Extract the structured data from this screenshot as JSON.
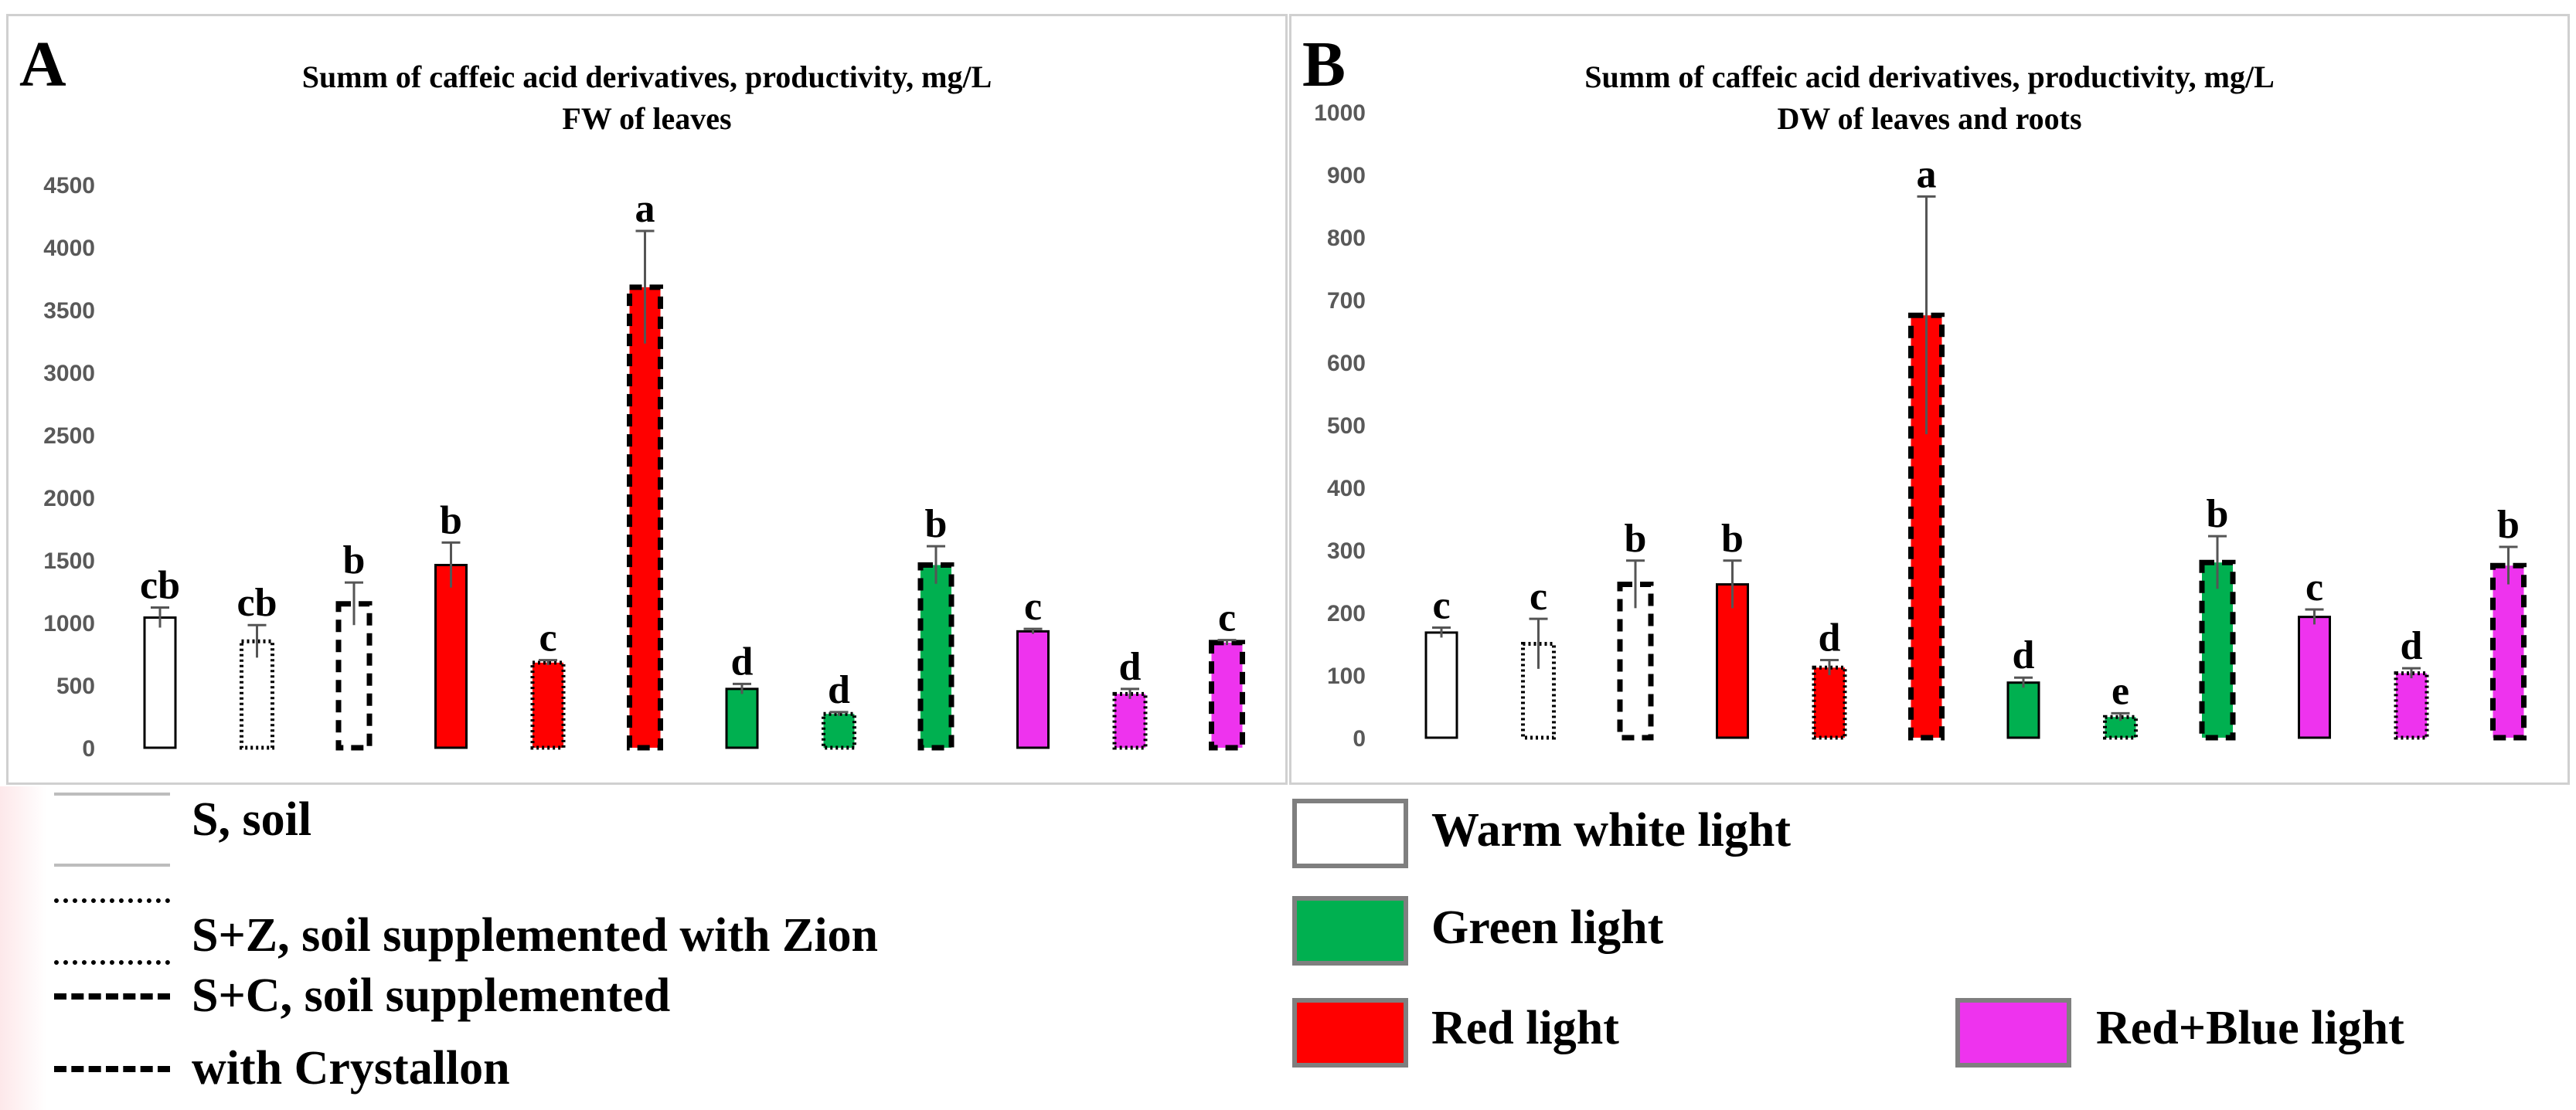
{
  "panels": [
    {
      "letter": "A",
      "title_line1": "Summ  of caffeic acid derivatives, productivity,  mg/L",
      "title_line2": "FW of leaves"
    },
    {
      "letter": "B",
      "title_line1": "Summ  of caffeic acid derivatives, productivity,  mg/L",
      "title_line2": "DW of leaves and roots"
    }
  ],
  "legend": {
    "substrates": {
      "soil": "S, soil",
      "zion": "S+Z, soil supplemented with Zion",
      "crystallon_1": "S+C, soil supplemented",
      "crystallon_2": "with Crystallon"
    },
    "lights": {
      "warm": "Warm white light",
      "green": "Green light",
      "red": "Red light",
      "redblue": "Red+Blue light"
    }
  },
  "colors": {
    "warm_white": "#ffffff",
    "green": "#00b050",
    "red": "#ff0000",
    "red_blue": "#ee33ee",
    "swatch_border": "#7f7f7f"
  },
  "chart_data": [
    {
      "type": "bar",
      "title": "Summ  of caffeic acid derivatives, productivity,  mg/L FW of leaves",
      "ylim": [
        0,
        4500
      ],
      "yticks": [
        "0",
        "500",
        "1000",
        "1500",
        "2000",
        "2500",
        "3000",
        "3500",
        "4000",
        "4500"
      ],
      "grid": false,
      "bars": [
        {
          "light": "warm",
          "substrate": "soil",
          "value": 1040,
          "error": 80,
          "letter": "cb"
        },
        {
          "light": "warm",
          "substrate": "zion",
          "value": 850,
          "error": 130,
          "letter": "cb"
        },
        {
          "light": "warm",
          "substrate": "crystallon",
          "value": 1150,
          "error": 170,
          "letter": "b"
        },
        {
          "light": "red",
          "substrate": "soil",
          "value": 1460,
          "error": 180,
          "letter": "b"
        },
        {
          "light": "red",
          "substrate": "zion",
          "value": 680,
          "error": 20,
          "letter": "c"
        },
        {
          "light": "red",
          "substrate": "crystallon",
          "value": 3680,
          "error": 450,
          "letter": "a"
        },
        {
          "light": "green",
          "substrate": "soil",
          "value": 470,
          "error": 40,
          "letter": "d"
        },
        {
          "light": "green",
          "substrate": "zion",
          "value": 270,
          "error": 15,
          "letter": "d"
        },
        {
          "light": "green",
          "substrate": "crystallon",
          "value": 1460,
          "error": 150,
          "letter": "b"
        },
        {
          "light": "redblue",
          "substrate": "soil",
          "value": 930,
          "error": 20,
          "letter": "c"
        },
        {
          "light": "redblue",
          "substrate": "zion",
          "value": 430,
          "error": 40,
          "letter": "d"
        },
        {
          "light": "redblue",
          "substrate": "crystallon",
          "value": 840,
          "error": 20,
          "letter": "c"
        }
      ]
    },
    {
      "type": "bar",
      "title": "Summ  of caffeic acid derivatives, productivity,  mg/L DW of leaves and roots",
      "ylim": [
        0,
        1000
      ],
      "yticks": [
        "0",
        "100",
        "200",
        "300",
        "400",
        "500",
        "600",
        "700",
        "800",
        "900",
        "1000"
      ],
      "grid": false,
      "bars": [
        {
          "light": "warm",
          "substrate": "soil",
          "value": 168,
          "error": 8,
          "letter": "c"
        },
        {
          "light": "warm",
          "substrate": "zion",
          "value": 150,
          "error": 40,
          "letter": "c"
        },
        {
          "light": "warm",
          "substrate": "crystallon",
          "value": 245,
          "error": 38,
          "letter": "b"
        },
        {
          "light": "red",
          "substrate": "soil",
          "value": 245,
          "error": 38,
          "letter": "b"
        },
        {
          "light": "red",
          "substrate": "zion",
          "value": 112,
          "error": 12,
          "letter": "d"
        },
        {
          "light": "red",
          "substrate": "crystallon",
          "value": 675,
          "error": 190,
          "letter": "a"
        },
        {
          "light": "green",
          "substrate": "soil",
          "value": 88,
          "error": 8,
          "letter": "d"
        },
        {
          "light": "green",
          "substrate": "zion",
          "value": 33,
          "error": 6,
          "letter": "e"
        },
        {
          "light": "green",
          "substrate": "crystallon",
          "value": 280,
          "error": 42,
          "letter": "b"
        },
        {
          "light": "redblue",
          "substrate": "soil",
          "value": 193,
          "error": 12,
          "letter": "c"
        },
        {
          "light": "redblue",
          "substrate": "zion",
          "value": 103,
          "error": 8,
          "letter": "d"
        },
        {
          "light": "redblue",
          "substrate": "crystallon",
          "value": 275,
          "error": 30,
          "letter": "b"
        }
      ]
    }
  ]
}
